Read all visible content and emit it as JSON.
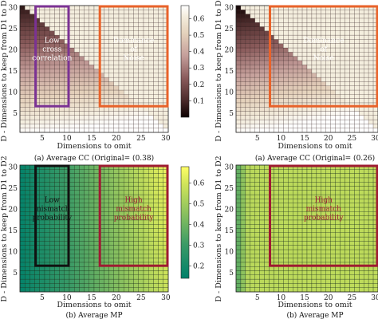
{
  "chart_data": [
    {
      "type": "heatmap",
      "panel": "top-left",
      "caption": "(a) Average CC (Original= (0.38)",
      "xlabel": "Dimensions to omit",
      "ylabel": "D - Dimensions to keep from D1 to D2",
      "x_ticks": [
        5,
        10,
        15,
        20,
        25,
        30
      ],
      "y_ticks": [
        5,
        10,
        15,
        20,
        25,
        30
      ],
      "x_range": [
        1,
        30
      ],
      "y_range": [
        1,
        30
      ],
      "colormap": "pink",
      "colorbar": {
        "ticks": [
          0.1,
          0.2,
          0.3,
          0.4,
          0.5,
          0.6
        ],
        "range": [
          0.0,
          0.68
        ]
      },
      "annotations": [
        {
          "text": [
            "Low",
            "cross",
            "correlation"
          ],
          "x_range": [
            4,
            10
          ],
          "y_range": [
            7,
            30
          ],
          "color": "#7b3294"
        },
        {
          "text": [
            "Dominance",
            "of",
            "Noise"
          ],
          "x_range": [
            17,
            30
          ],
          "y_range": [
            7,
            30
          ],
          "color": "#e8622a"
        }
      ]
    },
    {
      "type": "heatmap",
      "panel": "top-right",
      "caption": "(a) Average CC (Original= (0.26)",
      "xlabel": "Dimensions to omit",
      "ylabel": "D - Dimensions to keep from D1 to D2",
      "x_ticks": [
        5,
        10,
        15,
        20,
        25,
        30
      ],
      "y_ticks": [
        5,
        10,
        15,
        20,
        25,
        30
      ],
      "x_range": [
        1,
        30
      ],
      "y_range": [
        1,
        30
      ],
      "colormap": "pink",
      "annotations": [
        {
          "text": [
            "Dominance",
            "of",
            "Noise"
          ],
          "x_range": [
            8,
            30
          ],
          "y_range": [
            7,
            30
          ],
          "color": "#e8622a"
        }
      ]
    },
    {
      "type": "heatmap",
      "panel": "bottom-left",
      "caption": "(b) Average MP",
      "xlabel": "Dimensions to omit",
      "ylabel": "D - Dimensions to keep from D1 to D2",
      "x_ticks": [
        5,
        10,
        15,
        20,
        25,
        30
      ],
      "y_ticks": [
        5,
        10,
        15,
        20,
        25,
        30
      ],
      "x_range": [
        1,
        30
      ],
      "y_range": [
        1,
        30
      ],
      "colormap": "summer",
      "colorbar": {
        "ticks": [
          0.2,
          0.3,
          0.4,
          0.5,
          0.6
        ],
        "range": [
          0.14,
          0.68
        ]
      },
      "annotations": [
        {
          "text": [
            "Low",
            "mismatch",
            "probability"
          ],
          "x_range": [
            4,
            10
          ],
          "y_range": [
            7,
            30
          ],
          "color": "#111111"
        },
        {
          "text": [
            "High",
            "mismatch",
            "probability"
          ],
          "x_range": [
            17,
            30
          ],
          "y_range": [
            7,
            30
          ],
          "color": "#9e1b32"
        }
      ]
    },
    {
      "type": "heatmap",
      "panel": "bottom-right",
      "caption": "(b) Average MP",
      "xlabel": "Dimensions to omit",
      "ylabel": "D - Dimensions to keep from D1 to D2",
      "x_ticks": [
        5,
        10,
        15,
        20,
        25,
        30
      ],
      "y_ticks": [
        5,
        10,
        15,
        20,
        25,
        30
      ],
      "x_range": [
        1,
        30
      ],
      "y_range": [
        1,
        30
      ],
      "colormap": "summer",
      "annotations": [
        {
          "text": [
            "High",
            "mismatch",
            "probability"
          ],
          "x_range": [
            8,
            30
          ],
          "y_range": [
            7,
            30
          ],
          "color": "#9e1b32"
        }
      ]
    }
  ]
}
